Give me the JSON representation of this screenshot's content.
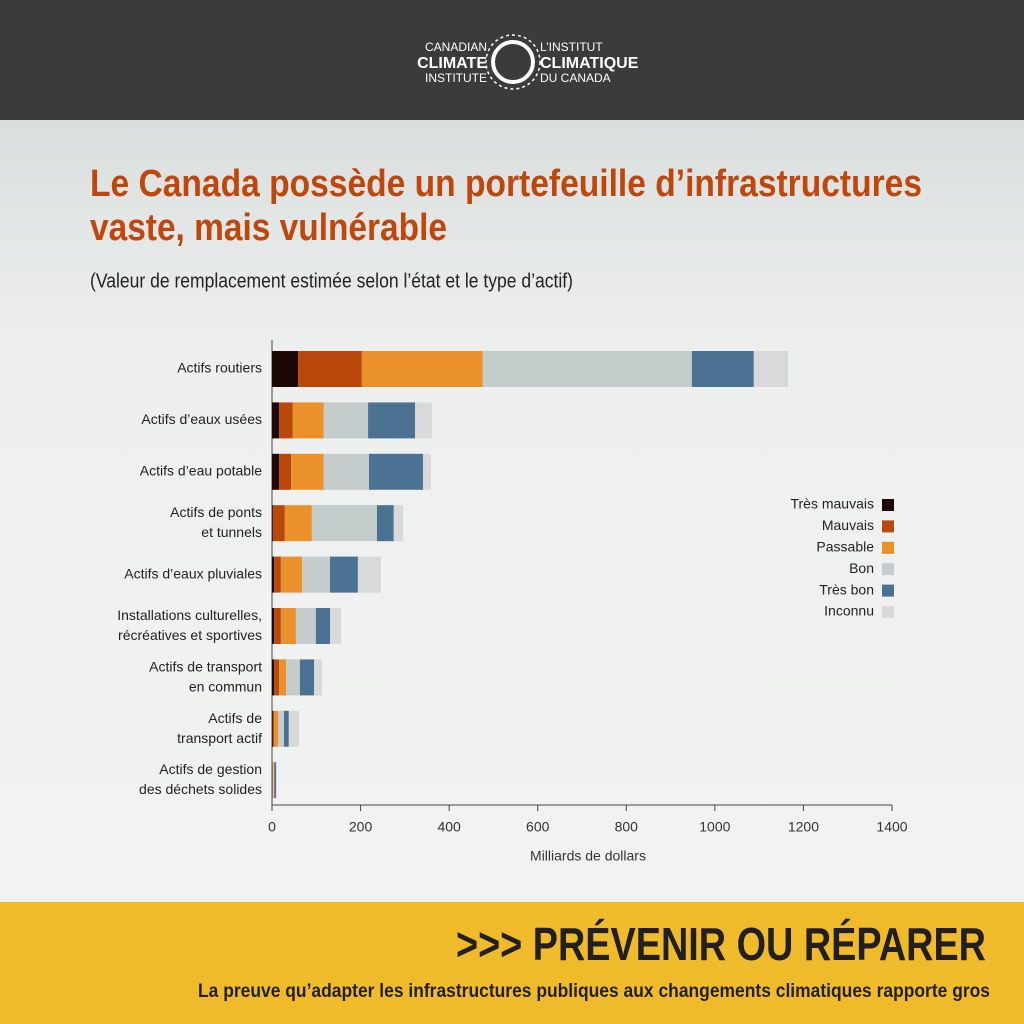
{
  "header": {
    "logo_left": [
      "CANADIAN",
      "CLIMATE",
      "INSTITUTE"
    ],
    "logo_right": [
      "L’INSTITUT",
      "CLIMATIQUE",
      "DU CANADA"
    ]
  },
  "chart_data": {
    "type": "bar",
    "orientation": "horizontal",
    "stacked": true,
    "title": [
      "Le Canada possède un portefeuille d’infrastructures",
      "vaste, mais vulnérable"
    ],
    "subtitle": "(Valeur de remplacement estimée selon l’état et le type d’actif)",
    "x_label": "Milliards de dollars",
    "categories": [
      "Actifs routiers",
      "Actifs d’eaux usées",
      "Actifs d’eau potable",
      "Actifs de ponts\net tunnels",
      "Actifs d’eaux pluviales",
      "Installations culturelles,\nrécréatives et sportives",
      "Actifs de transport\nen commun",
      "Actifs de\ntransport actif",
      "Actifs de gestion\ndes déchets solides"
    ],
    "series": [
      {
        "name": "Très mauvais",
        "color": "#1c0905",
        "values": [
          59,
          16,
          16,
          2,
          5,
          5,
          5,
          2,
          0
        ]
      },
      {
        "name": "Mauvais",
        "color": "#b9480c",
        "values": [
          144,
          31,
          27,
          27,
          15,
          15,
          11,
          3,
          2
        ]
      },
      {
        "name": "Passable",
        "color": "#ea912b",
        "values": [
          273,
          70,
          74,
          61,
          48,
          34,
          16,
          9,
          1
        ]
      },
      {
        "name": "Bon",
        "color": "#c4cdcc",
        "values": [
          472,
          100,
          102,
          147,
          63,
          45,
          31,
          13,
          2
        ]
      },
      {
        "name": "Très bon",
        "color": "#4b7193",
        "values": [
          140,
          106,
          122,
          38,
          63,
          32,
          32,
          11,
          4
        ]
      },
      {
        "name": "Inconnu",
        "color": "#d9d9d9",
        "values": [
          77,
          38,
          18,
          21,
          52,
          25,
          18,
          23,
          2
        ]
      }
    ],
    "xlim": [
      0,
      1400
    ],
    "xticks": [
      0,
      200,
      400,
      600,
      800,
      1000,
      1200,
      1400
    ],
    "legend": "right"
  },
  "footer": {
    "title": ">>> PRÉVENIR OU RÉPARER",
    "subtitle": "La preuve qu’adapter les infrastructures publiques aux changements climatiques rapporte gros"
  }
}
